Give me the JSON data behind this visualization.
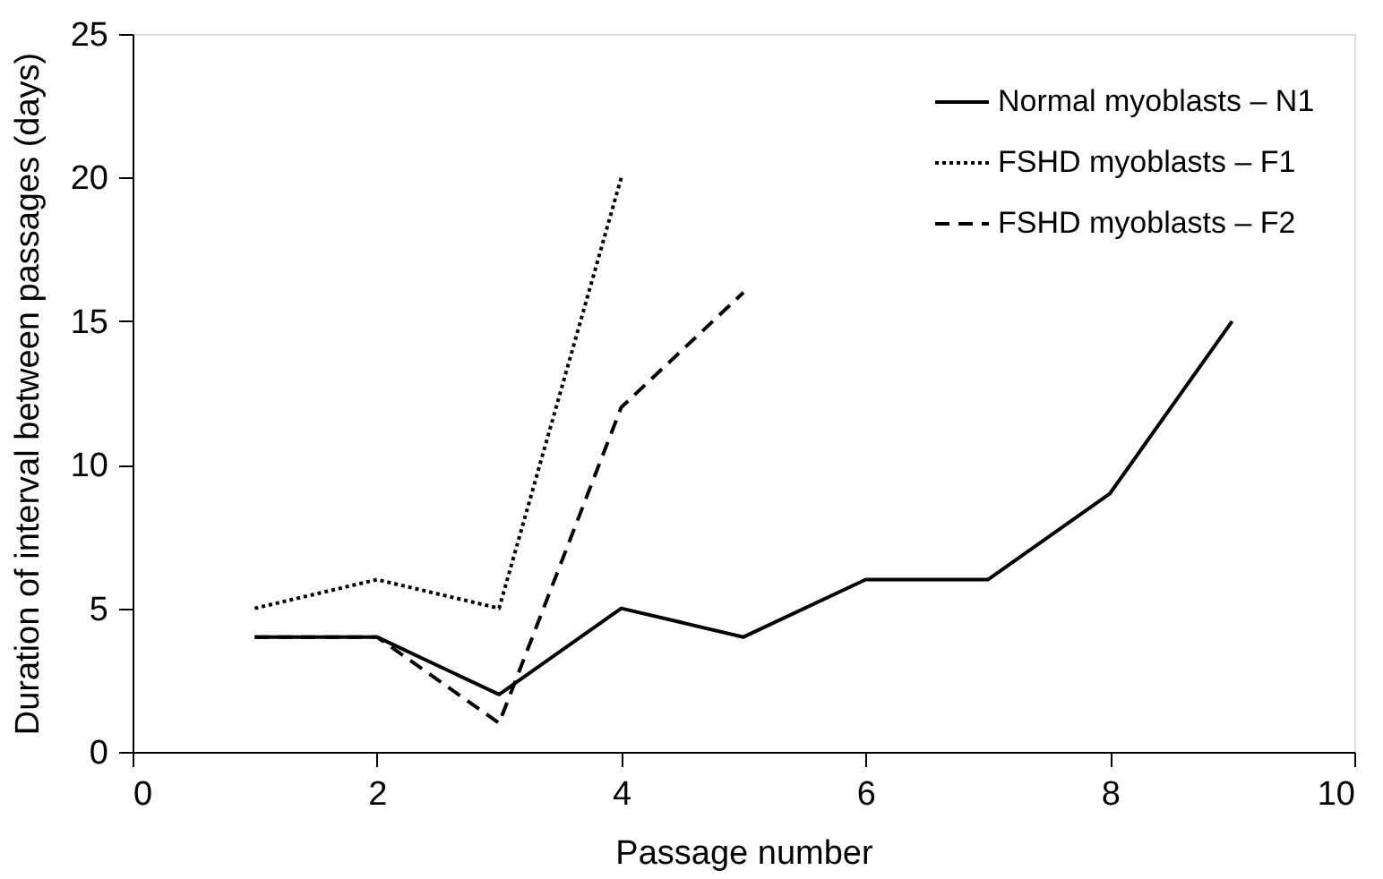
{
  "chart_data": {
    "type": "line",
    "xlabel": "Passage number",
    "ylabel": "Duration of interval between passages (days)",
    "series": [
      {
        "name": "Normal myoblasts – N1",
        "color": "#000000",
        "line_style": "solid",
        "x": [
          1,
          2,
          3,
          4,
          5,
          6,
          7,
          8,
          9
        ],
        "values": [
          4,
          4,
          2,
          5,
          4,
          6,
          6,
          9,
          15
        ]
      },
      {
        "name": "FSHD myoblasts – F1",
        "color": "#000000",
        "line_style": "dotted",
        "x": [
          1,
          2,
          3,
          4
        ],
        "values": [
          5,
          6,
          5,
          20
        ]
      },
      {
        "name": "FSHD myoblasts – F2",
        "color": "#000000",
        "line_style": "dashed",
        "x": [
          1,
          2,
          3,
          4,
          5
        ],
        "values": [
          4,
          4,
          1,
          12,
          16
        ]
      }
    ],
    "xlim": [
      0,
      10
    ],
    "xticks": [
      0,
      2,
      4,
      6,
      8,
      10
    ],
    "ylim": [
      0,
      25
    ],
    "yticks": [
      0,
      5,
      10,
      15,
      20,
      25
    ],
    "grid": false,
    "legend": "top right",
    "marker": "none"
  }
}
